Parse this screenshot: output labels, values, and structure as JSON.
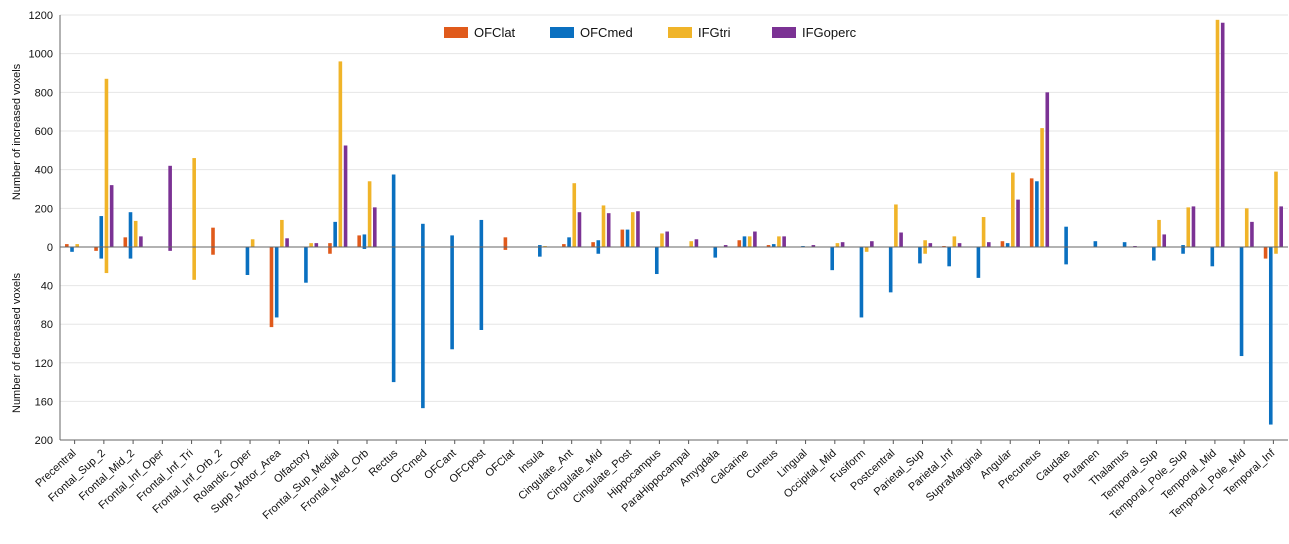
{
  "chart_data": {
    "type": "bar",
    "ylabel_top": "Number of increased voxels",
    "ylabel_bottom": "Number of decreased voxels",
    "ylim_top": [
      0,
      1200
    ],
    "ylim_bottom": [
      0,
      200
    ],
    "yticks_top": [
      "0",
      "200",
      "400",
      "600",
      "800",
      "1000",
      "1200"
    ],
    "yticks_bottom": [
      "40",
      "80",
      "120",
      "160",
      "200"
    ],
    "grid": true,
    "legend_position": "top-center",
    "colors": [
      "#e05a1b",
      "#0a70c0",
      "#f0b429",
      "#7b3294"
    ],
    "categories": [
      "Precentral",
      "Frontal_Sup_2",
      "Frontal_Mid_2",
      "Frontal_Inf_Oper",
      "Frontal_Inf_Tri",
      "Frontal_Inf_Orb_2",
      "Rolandic_Oper",
      "Supp_Motor_Area",
      "Olfactory",
      "Frontal_Sup_Medial",
      "Frontal_Med_Orb",
      "Rectus",
      "OFCmed",
      "OFCant",
      "OFCpost",
      "OFClat",
      "Insula",
      "Cingulate_Ant",
      "Cingulate_Mid",
      "Cingulate_Post",
      "Hippocampus",
      "ParaHippocampal",
      "Amygdala",
      "Calcarine",
      "Cuneus",
      "Lingual",
      "Occipital_Mid",
      "Fusiform",
      "Postcentral",
      "Parietal_Sup",
      "Parietal_Inf",
      "SupraMarginal",
      "Angular",
      "Precuneus",
      "Caudate",
      "Putamen",
      "Thalamus",
      "Temporal_Sup",
      "Temporal_Pole_Sup",
      "Temporal_Mid",
      "Temporal_Pole_Mid",
      "Temporal_Inf"
    ],
    "series": [
      {
        "name": "OFClat",
        "increased": [
          15,
          0,
          50,
          0,
          0,
          100,
          0,
          0,
          0,
          20,
          60,
          0,
          0,
          0,
          0,
          50,
          0,
          15,
          25,
          90,
          0,
          0,
          0,
          35,
          10,
          0,
          0,
          0,
          0,
          0,
          5,
          0,
          30,
          355,
          0,
          0,
          0,
          0,
          0,
          0,
          0,
          0
        ],
        "decreased": [
          0,
          4,
          0,
          0,
          0,
          8,
          0,
          83,
          0,
          7,
          0,
          0,
          0,
          0,
          0,
          3,
          0,
          0,
          0,
          0,
          0,
          0,
          0,
          0,
          0,
          0,
          0,
          0,
          0,
          0,
          0,
          0,
          0,
          0,
          0,
          0,
          0,
          0,
          0,
          0,
          0,
          12
        ]
      },
      {
        "name": "OFCmed",
        "increased": [
          0,
          160,
          180,
          0,
          0,
          0,
          0,
          0,
          0,
          130,
          65,
          375,
          120,
          60,
          140,
          0,
          10,
          50,
          35,
          90,
          0,
          0,
          0,
          55,
          15,
          5,
          0,
          0,
          0,
          0,
          0,
          0,
          20,
          340,
          105,
          30,
          25,
          0,
          10,
          0,
          0,
          0
        ],
        "decreased": [
          5,
          12,
          12,
          0,
          0,
          0,
          29,
          73,
          37,
          0,
          2,
          140,
          167,
          106,
          86,
          0,
          10,
          0,
          7,
          0,
          28,
          0,
          11,
          0,
          0,
          0,
          24,
          73,
          47,
          17,
          20,
          32,
          0,
          0,
          18,
          0,
          0,
          14,
          7,
          20,
          113,
          184
        ]
      },
      {
        "name": "IFGtri",
        "increased": [
          15,
          870,
          135,
          0,
          460,
          0,
          40,
          140,
          20,
          960,
          340,
          0,
          0,
          0,
          0,
          0,
          5,
          330,
          215,
          180,
          70,
          30,
          0,
          55,
          55,
          0,
          20,
          0,
          220,
          35,
          55,
          155,
          385,
          615,
          0,
          0,
          0,
          140,
          205,
          1175,
          200,
          390
        ],
        "decreased": [
          0,
          27,
          0,
          0,
          34,
          0,
          0,
          0,
          0,
          0,
          0,
          0,
          0,
          0,
          0,
          0,
          0,
          0,
          0,
          0,
          0,
          0,
          0,
          0,
          0,
          0,
          0,
          5,
          0,
          7,
          0,
          0,
          0,
          0,
          0,
          0,
          0,
          0,
          0,
          0,
          0,
          7
        ]
      },
      {
        "name": "IFGoperc",
        "increased": [
          0,
          320,
          55,
          420,
          0,
          0,
          0,
          45,
          20,
          525,
          205,
          0,
          0,
          0,
          0,
          0,
          0,
          180,
          175,
          185,
          80,
          40,
          10,
          80,
          55,
          10,
          25,
          30,
          75,
          20,
          20,
          25,
          245,
          800,
          0,
          0,
          5,
          65,
          210,
          1160,
          130,
          210
        ],
        "decreased": [
          0,
          0,
          0,
          4,
          0,
          0,
          0,
          0,
          0,
          0,
          0,
          0,
          0,
          0,
          0,
          0,
          0,
          0,
          0,
          0,
          0,
          0,
          0,
          0,
          0,
          0,
          0,
          0,
          0,
          0,
          0,
          0,
          0,
          0,
          0,
          0,
          0,
          0,
          0,
          0,
          0,
          0
        ]
      }
    ]
  }
}
